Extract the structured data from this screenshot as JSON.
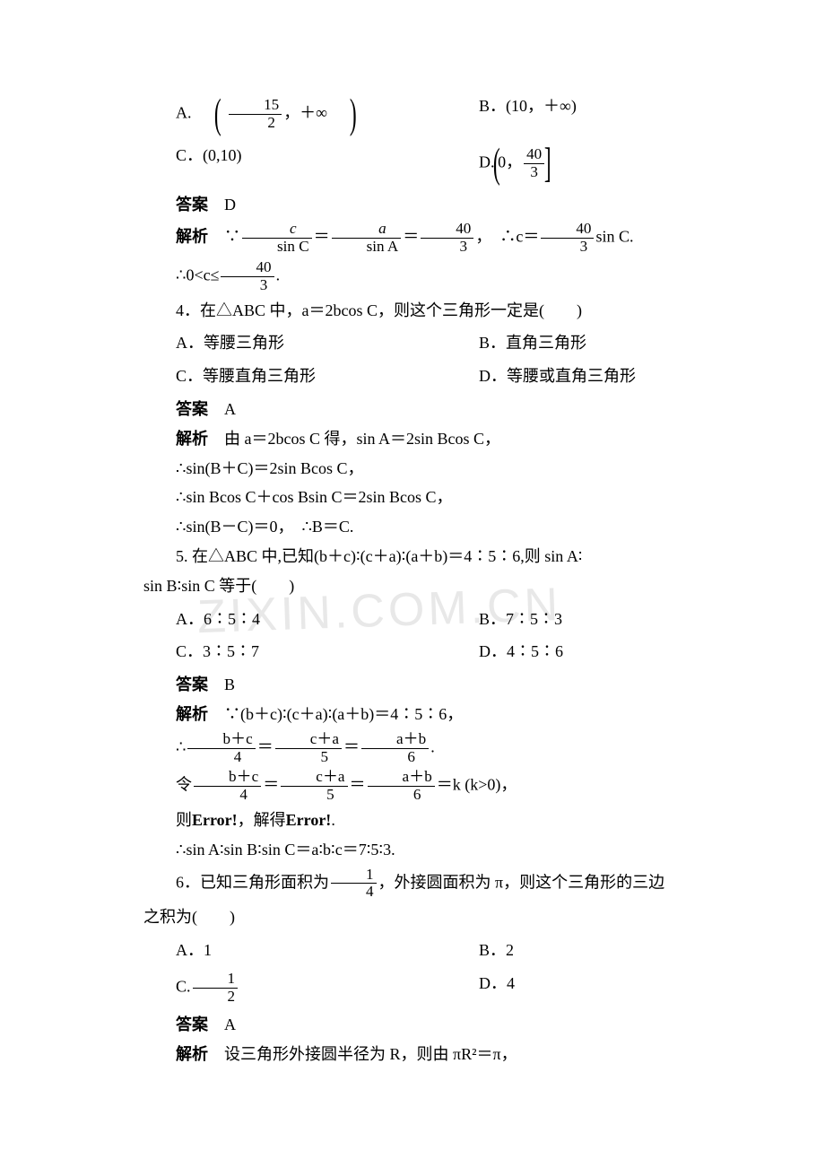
{
  "watermark": "ZIXIN.COM.CN",
  "q3": {
    "opts": {
      "a_label": "A.",
      "a_frac_num": "15",
      "a_frac_den": "2",
      "a_tail": "，＋∞",
      "b": "B．(10，＋∞)",
      "c": "C．(0,10)",
      "d_label": "D.",
      "d_head": "0，",
      "d_frac_num": "40",
      "d_frac_den": "3"
    },
    "ans_label": "答案",
    "ans": "D",
    "exp_label": "解析",
    "exp1_pre": "∵",
    "exp1_f1n": "c",
    "exp1_f1d": "sin C",
    "exp1_eq1": "＝",
    "exp1_f2n": "a",
    "exp1_f2d": "sin A",
    "exp1_eq2": "＝",
    "exp1_f3n": "40",
    "exp1_f3d": "3",
    "exp1_mid": "，　∴c＝",
    "exp1_f4n": "40",
    "exp1_f4d": "3",
    "exp1_tail": "sin C.",
    "exp2_pre": "∴0<c≤",
    "exp2_fn": "40",
    "exp2_fd": "3",
    "exp2_tail": "."
  },
  "q4": {
    "stem": "4．在△ABC 中，a＝2bcos C，则这个三角形一定是(　　)",
    "a": "A．等腰三角形",
    "b": "B．直角三角形",
    "c": "C．等腰直角三角形",
    "d": "D．等腰或直角三角形",
    "ans_label": "答案",
    "ans": "A",
    "exp_label": "解析",
    "exp1": "由 a＝2bcos C 得，sin A＝2sin Bcos C，",
    "exp2": "∴sin(B＋C)＝2sin Bcos C，",
    "exp3": "∴sin Bcos C＋cos Bsin C＝2sin Bcos C，",
    "exp4": "∴sin(B－C)＝0，　∴B＝C."
  },
  "q5": {
    "stem1": "5. 在△ABC 中,已知(b＋c)∶(c＋a)∶(a＋b)＝4∶5∶6,则 sin A∶",
    "stem2": "sin B∶sin C 等于(　　)",
    "a": "A．6∶5∶4",
    "b": "B．7∶5∶3",
    "c": "C．3∶5∶7",
    "d": "D．4∶5∶6",
    "ans_label": "答案",
    "ans": "B",
    "exp_label": "解析",
    "exp1": "∵(b＋c)∶(c＋a)∶(a＋b)＝4∶5∶6，",
    "exp2_pre": "∴",
    "exp2_f1n": "b＋c",
    "exp2_f1d": "4",
    "exp2_eq1": "＝",
    "exp2_f2n": "c＋a",
    "exp2_f2d": "5",
    "exp2_eq2": "＝",
    "exp2_f3n": "a＋b",
    "exp2_f3d": "6",
    "exp2_tail": ".",
    "exp3_pre": "令",
    "exp3_f1n": "b＋c",
    "exp3_f1d": "4",
    "exp3_eq1": "＝",
    "exp3_f2n": "c＋a",
    "exp3_f2d": "5",
    "exp3_eq2": "＝",
    "exp3_f3n": "a＋b",
    "exp3_f3d": "6",
    "exp3_tail": "＝k (k>0)，",
    "exp4_pre": "则",
    "exp4_err1": "Error!",
    "exp4_mid": "，解得",
    "exp4_err2": "Error!",
    "exp4_tail": ".",
    "exp5": "∴sin A∶sin B∶sin C＝a∶b∶c＝7∶5∶3."
  },
  "q6": {
    "stem1_pre": "6．已知三角形面积为",
    "stem1_fn": "1",
    "stem1_fd": "4",
    "stem1_tail": "，外接圆面积为 π，则这个三角形的三边",
    "stem2": "之积为(　　)",
    "a": "A．1",
    "b": "B．2",
    "c_label": "C.",
    "c_fn": "1",
    "c_fd": "2",
    "d": "D．4",
    "ans_label": "答案",
    "ans": "A",
    "exp_label": "解析",
    "exp1": "设三角形外接圆半径为 R，则由 πR²＝π，"
  }
}
